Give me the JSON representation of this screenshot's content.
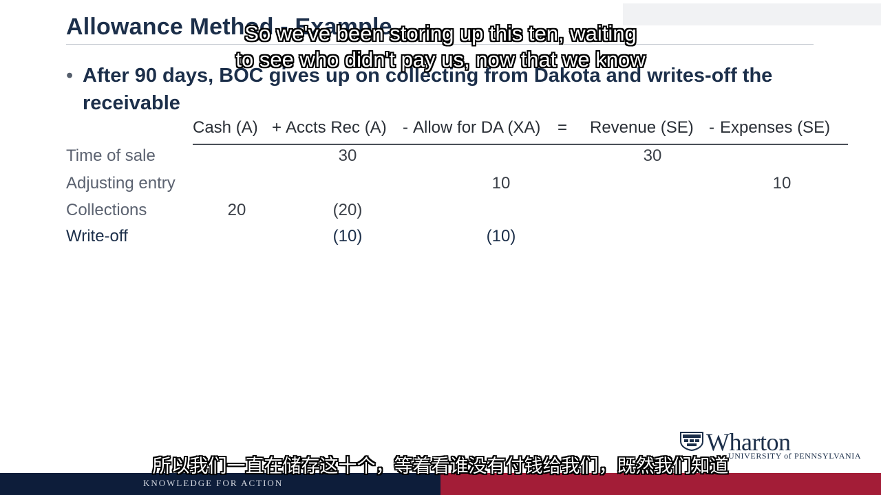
{
  "slide": {
    "title": "Allowance Method - Example",
    "bullet": "After 90 days, BOC gives up on collecting from Dakota and writes-off the receivable"
  },
  "equation": {
    "cash": "Cash (A)",
    "plus": "+",
    "ar": "Accts Rec (A)",
    "minus1": "-",
    "allow": "Allow for DA (XA)",
    "equals": "=",
    "revenue": "Revenue (SE)",
    "minus2": "-",
    "expenses": "Expenses (SE)"
  },
  "rows": [
    {
      "label": "Time of sale",
      "cash": "",
      "ar": "30",
      "allow": "",
      "revenue": "30",
      "expenses": ""
    },
    {
      "label": "Adjusting entry",
      "cash": "",
      "ar": "",
      "allow": "10",
      "revenue": "",
      "expenses": "10"
    },
    {
      "label": "Collections",
      "cash": "20",
      "ar": "(20)",
      "allow": "",
      "revenue": "",
      "expenses": ""
    },
    {
      "label": "Write-off",
      "cash": "",
      "ar": "(10)",
      "allow": "(10)",
      "revenue": "",
      "expenses": ""
    }
  ],
  "subtitles": {
    "en_line1": "So we've been storing up this ten, waiting",
    "en_line2": "to see who didn't pay us, now that we know",
    "zh": "所以我们一直在储存这十个，等着看谁没有付钱给我们，既然我们知道"
  },
  "branding": {
    "logo_name": "Wharton",
    "logo_univ": "UNIVERSITY of PENNSYLVANIA",
    "tagline": "KNOWLEDGE FOR ACTION"
  },
  "colors": {
    "navy": "#0d1d3a",
    "crimson": "#a31d37",
    "title": "#1c2f4a"
  }
}
